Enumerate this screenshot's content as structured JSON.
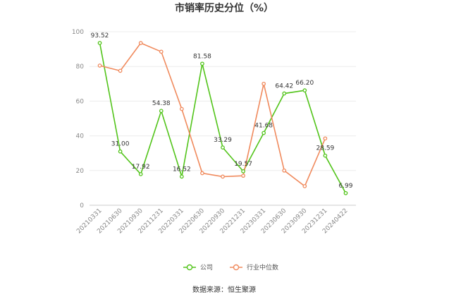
{
  "chart_data": {
    "type": "line",
    "title": "市销率历史分位（%）",
    "x": [
      "20210331",
      "20210630",
      "20210930",
      "20211231",
      "20220331",
      "20220630",
      "20220930",
      "20221231",
      "20230331",
      "20230630",
      "20230930",
      "20231231",
      "20240422"
    ],
    "ylim": [
      0,
      100
    ],
    "yticks": [
      0,
      20,
      40,
      60,
      80,
      100
    ],
    "grid": true,
    "legend_position": "bottom",
    "series": [
      {
        "name": "公司",
        "color": "#52c41a",
        "values": [
          93.52,
          31.0,
          17.92,
          54.38,
          16.52,
          81.58,
          33.29,
          19.57,
          41.68,
          64.42,
          66.2,
          28.59,
          6.99
        ],
        "labels": [
          "93.52",
          "31.00",
          "17.92",
          "54.38",
          "16.52",
          "81.58",
          "33.29",
          "19.57",
          "41.68",
          "64.42",
          "66.20",
          "28.59",
          "6.99"
        ]
      },
      {
        "name": "行业中位数",
        "color": "#f08a5d",
        "values": [
          80.5,
          77.5,
          93.5,
          88.5,
          55.5,
          18.5,
          16.5,
          17.0,
          70.0,
          20.0,
          11.0,
          38.5,
          null
        ]
      }
    ]
  },
  "footer": {
    "source": "数据来源：恒生聚源"
  }
}
